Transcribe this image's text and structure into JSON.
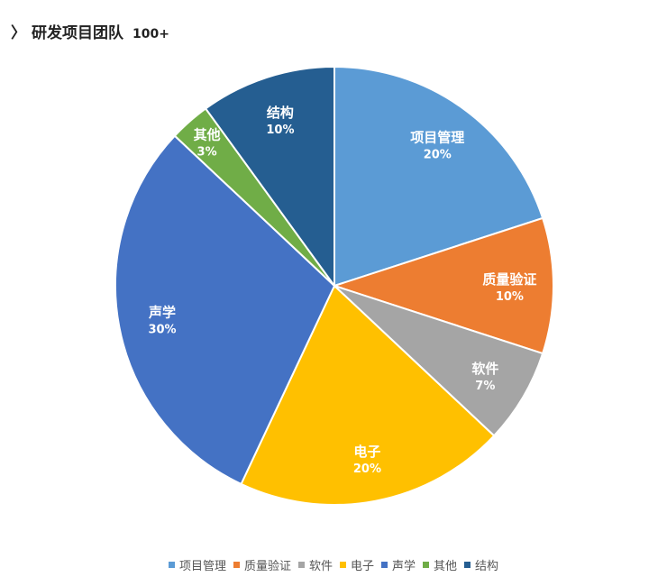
{
  "header": {
    "chevron_icon": "chevron-right",
    "title": "研发项目团队",
    "count": "100+"
  },
  "chart_data": {
    "type": "pie",
    "start": "top",
    "direction": "clockwise",
    "categories": [
      "项目管理",
      "质量验证",
      "软件",
      "电子",
      "声学",
      "其他",
      "结构"
    ],
    "values": [
      20,
      10,
      7,
      20,
      30,
      3,
      10
    ],
    "labels": [
      "20%",
      "10%",
      "7%",
      "20%",
      "30%",
      "3%",
      "10%"
    ],
    "colors": [
      "#5B9BD5",
      "#ED7D31",
      "#A5A5A5",
      "#FFC000",
      "#4472C4",
      "#70AD47",
      "#255E91"
    ],
    "legend": "bottom"
  }
}
